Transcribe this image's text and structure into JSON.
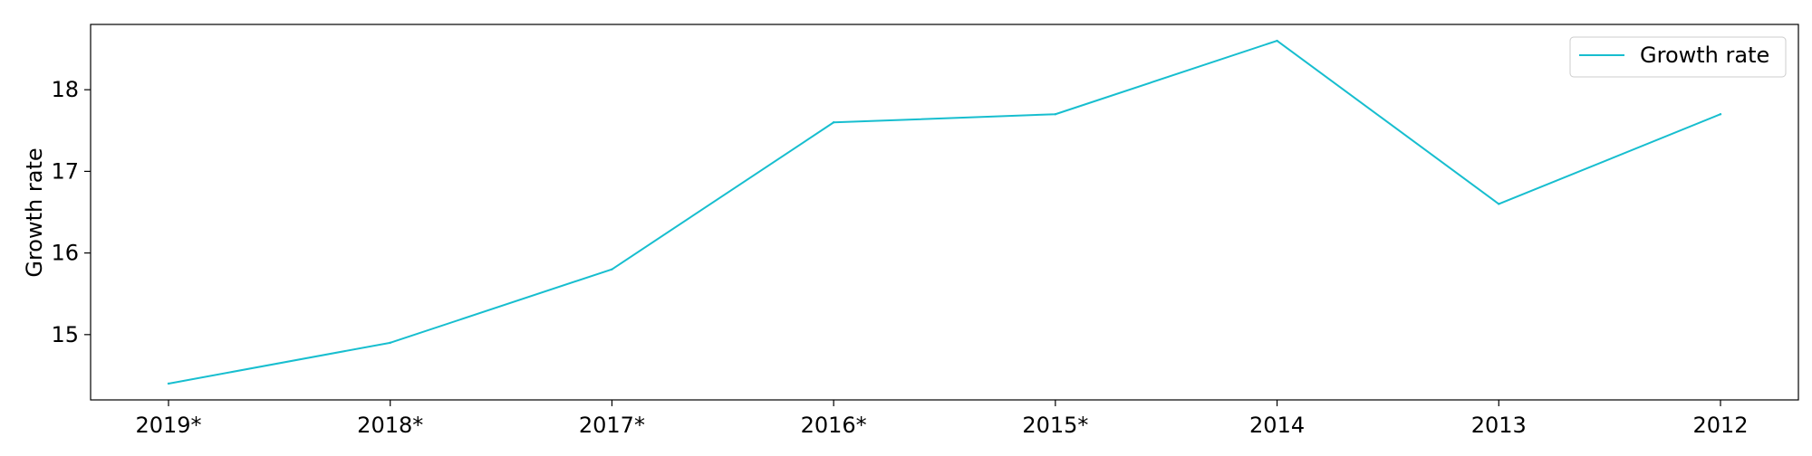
{
  "chart_data": {
    "type": "line",
    "title": "",
    "xlabel": "",
    "ylabel": "Growth rate",
    "categories": [
      "2019*",
      "2018*",
      "2017*",
      "2016*",
      "2015*",
      "2014",
      "2013",
      "2012"
    ],
    "series": [
      {
        "name": "Growth rate",
        "color": "#17becf",
        "values": [
          14.4,
          14.9,
          15.8,
          17.6,
          17.7,
          18.6,
          16.6,
          17.7
        ]
      }
    ],
    "ylim": [
      14.2,
      18.8
    ],
    "yticks": [
      15,
      16,
      17,
      18
    ],
    "grid": false,
    "legend_position": "top-right"
  }
}
